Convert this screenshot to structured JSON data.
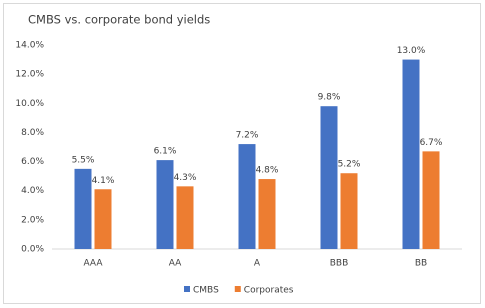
{
  "chart_data": {
    "type": "bar",
    "title": "CMBS vs. corporate bond yields",
    "categories": [
      "AAA",
      "AA",
      "A",
      "BBB",
      "BB"
    ],
    "series": [
      {
        "name": "CMBS",
        "color": "#4472c4",
        "values": [
          5.5,
          6.1,
          7.2,
          9.8,
          13.0
        ],
        "value_labels": [
          "5.5%",
          "6.1%",
          "7.2%",
          "9.8%",
          "13.0%"
        ]
      },
      {
        "name": "Corporates",
        "color": "#ed7d31",
        "values": [
          4.1,
          4.3,
          4.8,
          5.2,
          6.7
        ],
        "value_labels": [
          "4.1%",
          "4.3%",
          "4.8%",
          "5.2%",
          "6.7%"
        ]
      }
    ],
    "ylim": [
      0,
      14
    ],
    "yticks": [
      {
        "value": 0,
        "label": "0.0%"
      },
      {
        "value": 2,
        "label": "2.0%"
      },
      {
        "value": 4,
        "label": "4.0%"
      },
      {
        "value": 6,
        "label": "6.0%"
      },
      {
        "value": 8,
        "label": "8.0%"
      },
      {
        "value": 10,
        "label": "10.0%"
      },
      {
        "value": 12,
        "label": "12.0%"
      },
      {
        "value": 14,
        "label": "14.0%"
      }
    ],
    "grid": false,
    "legend": "bottom"
  }
}
